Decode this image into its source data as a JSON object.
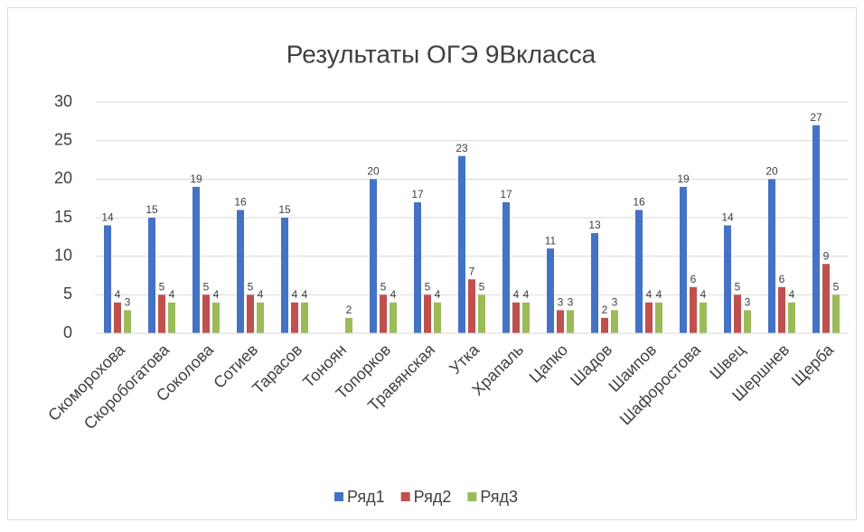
{
  "chart_data": {
    "type": "bar",
    "title": "Результаты ОГЭ 9Вкласса",
    "categories": [
      "Скоморохова",
      "Скоробогатова",
      "Соколова",
      "Сотиев",
      "Тарасов",
      "Тоноян",
      "Топорков",
      "Травянская",
      "Утка",
      "Храпаль",
      "Цапко",
      "Шадов",
      "Шаипов",
      "Шафоростова",
      "Швец",
      "Шершнев",
      "Щерба"
    ],
    "series": [
      {
        "name": "Ряд1",
        "color": "#4472c4",
        "values": [
          14,
          15,
          19,
          16,
          15,
          null,
          20,
          17,
          23,
          17,
          11,
          13,
          16,
          19,
          14,
          20,
          27
        ]
      },
      {
        "name": "Ряд2",
        "color": "#c0504d",
        "values": [
          4,
          5,
          5,
          5,
          4,
          null,
          5,
          5,
          7,
          4,
          3,
          2,
          4,
          6,
          5,
          6,
          9
        ]
      },
      {
        "name": "Ряд3",
        "color": "#9bbb59",
        "values": [
          3,
          4,
          4,
          4,
          4,
          2,
          4,
          4,
          5,
          4,
          3,
          3,
          4,
          4,
          3,
          4,
          5
        ]
      }
    ],
    "ylim": [
      0,
      30
    ],
    "yticks": [
      0,
      5,
      10,
      15,
      20,
      25,
      30
    ],
    "grid": true,
    "legend": "bottom"
  }
}
